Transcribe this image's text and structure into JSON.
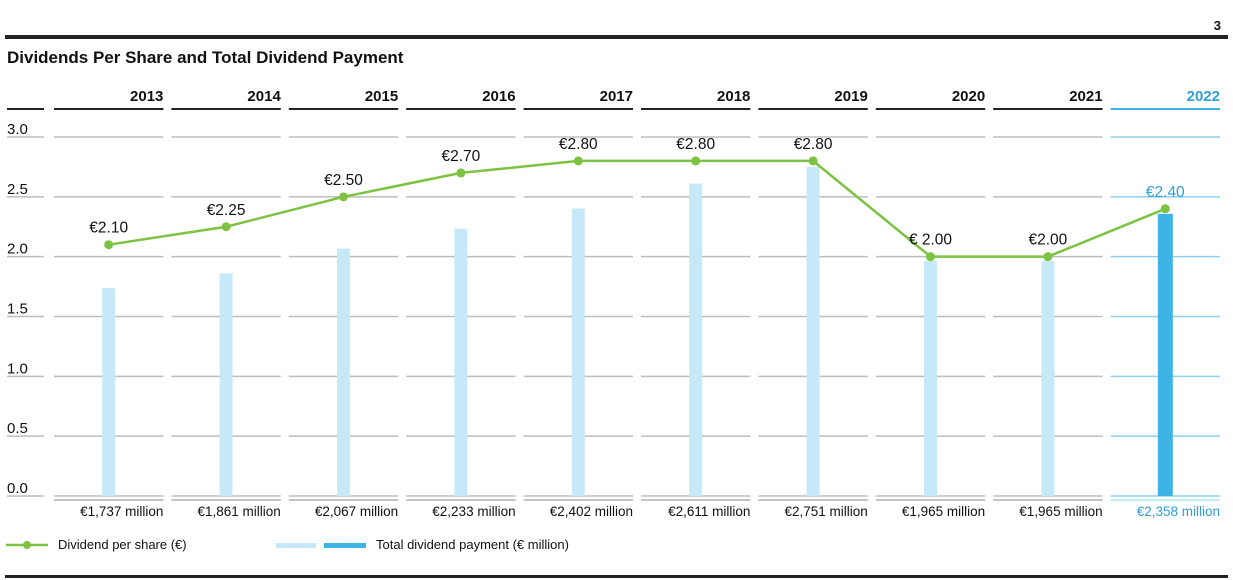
{
  "page_number": "3",
  "chart_data": {
    "type": "bar+line",
    "title": "Dividends Per Share and Total Dividend Payment",
    "categories": [
      "2013",
      "2014",
      "2015",
      "2016",
      "2017",
      "2018",
      "2019",
      "2020",
      "2021",
      "2022"
    ],
    "highlight_category": "2022",
    "ylim": [
      0,
      3.0
    ],
    "yticks": [
      0.0,
      0.5,
      1.0,
      1.5,
      2.0,
      2.5,
      3.0
    ],
    "ytick_labels": [
      "0.0",
      "0.5",
      "1.0",
      "1.5",
      "2.0",
      "2.5",
      "3.0"
    ],
    "grid": true,
    "series": [
      {
        "name": "Dividend per share (€)",
        "type": "line",
        "values": [
          2.1,
          2.25,
          2.5,
          2.7,
          2.8,
          2.8,
          2.8,
          2.0,
          2.0,
          2.4
        ],
        "labels": [
          "€2.10",
          "€2.25",
          "€2.50",
          "€2.70",
          "€2.80",
          "€2.80",
          "€2.80",
          "€ 2.00",
          "€2.00",
          "€2.40"
        ]
      },
      {
        "name": "Total dividend payment (€ million)",
        "type": "bar",
        "values": [
          1737,
          1861,
          2067,
          2233,
          2402,
          2611,
          2751,
          1965,
          1965,
          2358
        ],
        "bar_scale_max": 3000,
        "labels": [
          "€1,737 million",
          "€1,861 million",
          "€2,067 million",
          "€2,233 million",
          "€2,402 million",
          "€2,611 million",
          "€2,751 million",
          "€1,965 million",
          "€1,965 million",
          "€2,358 million"
        ]
      }
    ],
    "legend_position": "bottom-left",
    "colors": {
      "line": "#7dc242",
      "bar": "#c6e9f7",
      "bar_highlight": "#3db4e5",
      "highlight_text": "#2f9fd8",
      "grid": "#bdbdbd",
      "grid_highlight": "#8fd0ee",
      "axis_text": "#111111"
    }
  },
  "legend": {
    "items": [
      {
        "label": "Dividend per share (€)"
      },
      {
        "label": "Total dividend payment (€ million)"
      }
    ]
  }
}
